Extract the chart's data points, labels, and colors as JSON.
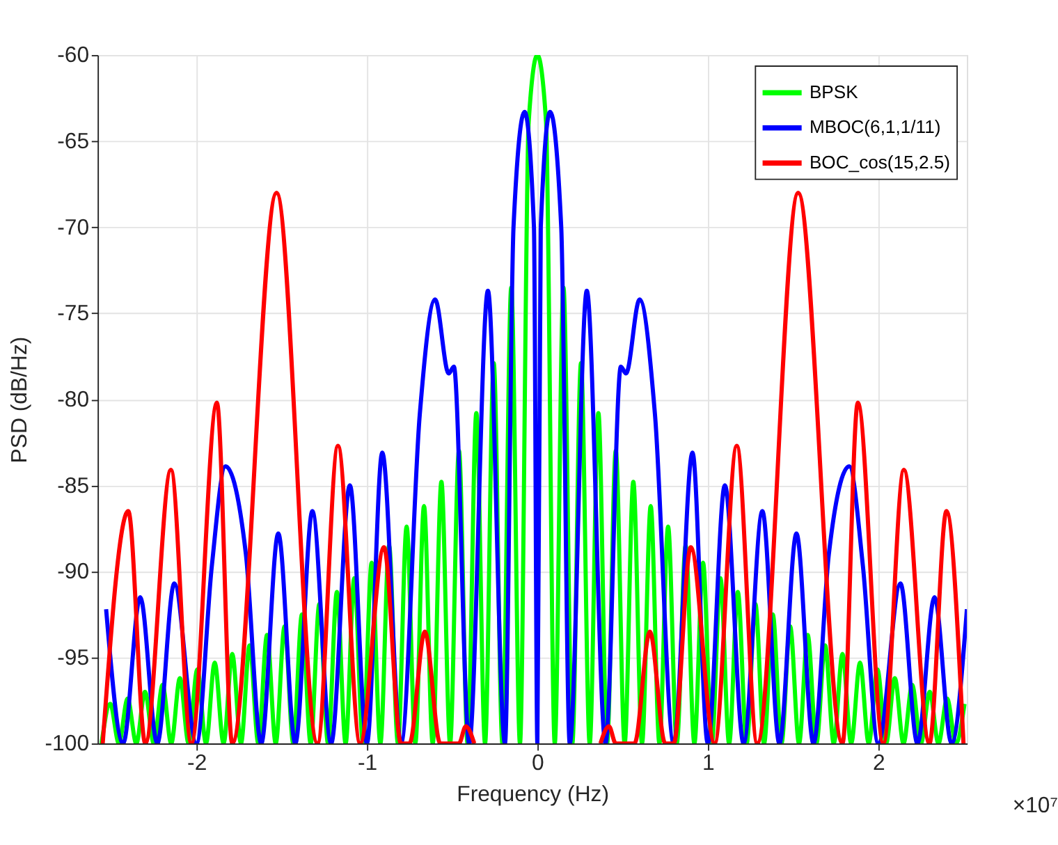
{
  "chart_data": {
    "type": "line",
    "xlabel": "Frequency (Hz)",
    "ylabel": "PSD (dB/Hz)",
    "xlim": [
      -2.58,
      2.52
    ],
    "xticks": [
      -2,
      -1,
      0,
      1,
      2
    ],
    "ylim": [
      -100,
      -60
    ],
    "yticks": [
      -100,
      -95,
      -90,
      -85,
      -80,
      -75,
      -70,
      -65,
      -60
    ],
    "grid": true,
    "legend": "top right",
    "line_style": "solid",
    "marker": "none",
    "annotations": [
      "×10⁷"
    ],
    "series": [
      {
        "name": "BPSK",
        "color": "#00ff00",
        "x": [
          -2.557,
          -2.506,
          -2.455,
          -2.404,
          -2.353,
          -2.302,
          -2.25,
          -2.199,
          -2.148,
          -2.097,
          -2.046,
          -1.995,
          -1.944,
          -1.893,
          -1.841,
          -1.79,
          -1.739,
          -1.688,
          -1.637,
          -1.586,
          -1.535,
          -1.483,
          -1.432,
          -1.381,
          -1.33,
          -1.279,
          -1.228,
          -1.176,
          -1.125,
          -1.074,
          -1.023,
          -0.972,
          -0.921,
          -0.87,
          -0.818,
          -0.767,
          -0.716,
          -0.665,
          -0.614,
          -0.563,
          -0.512,
          -0.46,
          -0.409,
          -0.358,
          -0.307,
          -0.256,
          -0.205,
          -0.153,
          -0.102,
          -0.051,
          0,
          0.051,
          0.102,
          0.153,
          0.205,
          0.256,
          0.307,
          0.358,
          0.409,
          0.46,
          0.512,
          0.563,
          0.614,
          0.665,
          0.716,
          0.767,
          0.818,
          0.87,
          0.921,
          0.972,
          1.023,
          1.074,
          1.125,
          1.176,
          1.228,
          1.279,
          1.33,
          1.381,
          1.432,
          1.483,
          1.535,
          1.586,
          1.637,
          1.688,
          1.739,
          1.79,
          1.841,
          1.893,
          1.944,
          1.995,
          2.046,
          2.097,
          2.148,
          2.199,
          2.25,
          2.302,
          2.353,
          2.404,
          2.455,
          2.506
        ],
        "values": [
          -100,
          -97.7,
          -100,
          -97.4,
          -100,
          -97.0,
          -100,
          -96.6,
          -100,
          -96.2,
          -100,
          -95.7,
          -100,
          -95.3,
          -100,
          -94.8,
          -100,
          -94.3,
          -100,
          -93.7,
          -100,
          -93.2,
          -100,
          -92.5,
          -100,
          -91.9,
          -100,
          -91.2,
          -100,
          -90.4,
          -100,
          -89.5,
          -100,
          -88.5,
          -100,
          -87.4,
          -100,
          -86.2,
          -100,
          -84.8,
          -100,
          -83.0,
          -100,
          -80.8,
          -100,
          -77.9,
          -100,
          -73.5,
          -100,
          -63.9,
          -60,
          -63.9,
          -100,
          -73.5,
          -100,
          -77.9,
          -100,
          -80.8,
          -100,
          -83.0,
          -100,
          -84.8,
          -100,
          -86.2,
          -100,
          -87.4,
          -100,
          -88.5,
          -100,
          -89.5,
          -100,
          -90.4,
          -100,
          -91.2,
          -100,
          -91.9,
          -100,
          -92.5,
          -100,
          -93.2,
          -100,
          -93.7,
          -100,
          -94.3,
          -100,
          -94.8,
          -100,
          -95.3,
          -100,
          -95.7,
          -100,
          -96.2,
          -100,
          -96.6,
          -100,
          -97.0,
          -100,
          -97.4,
          -100,
          -97.7
        ]
      },
      {
        "name": "MBOC(6,1,1/11)",
        "color": "#0000ff",
        "x": [
          -2.53,
          -2.43,
          -2.33,
          -2.23,
          -2.13,
          -2.0,
          -1.91,
          -1.83,
          -1.71,
          -1.62,
          -1.52,
          -1.42,
          -1.32,
          -1.21,
          -1.1,
          -1.0,
          -0.91,
          -0.8,
          -0.69,
          -0.6,
          -0.52,
          -0.49,
          -0.4,
          -0.29,
          -0.19,
          -0.14,
          -0.075,
          -0.02,
          0,
          0.02,
          0.075,
          0.14,
          0.19,
          0.29,
          0.4,
          0.49,
          0.52,
          0.6,
          0.69,
          0.8,
          0.91,
          1.0,
          1.1,
          1.21,
          1.32,
          1.42,
          1.52,
          1.62,
          1.71,
          1.83,
          1.91,
          2.0,
          2.13,
          2.23,
          2.33,
          2.43,
          2.52
        ],
        "values": [
          -92.2,
          -100,
          -91.5,
          -100,
          -90.7,
          -100,
          -89.7,
          -83.9,
          -89.0,
          -100,
          -87.8,
          -100,
          -86.5,
          -100,
          -85.0,
          -100,
          -83.1,
          -100,
          -80.9,
          -74.2,
          -78.5,
          -78.1,
          -100,
          -73.7,
          -100,
          -70,
          -63.3,
          -70,
          -100,
          -70,
          -63.3,
          -70,
          -100,
          -73.7,
          -100,
          -78.1,
          -78.5,
          -74.2,
          -80.9,
          -100,
          -83.1,
          -100,
          -85.0,
          -100,
          -86.5,
          -100,
          -87.8,
          -100,
          -89.0,
          -83.9,
          -89.7,
          -100,
          -90.7,
          -100,
          -91.5,
          -100,
          -92.2
        ]
      },
      {
        "name": "BOC_cos(15,2.5)",
        "color": "#ff0000",
        "x": [
          -2.55,
          -2.4,
          -2.3,
          -2.15,
          -2.03,
          -1.88,
          -1.79,
          -1.53,
          -1.29,
          -1.17,
          -1.04,
          -0.9,
          -0.8,
          -0.75,
          -0.66,
          -0.57,
          -0.46,
          -0.42,
          -0.37,
          0,
          0.37,
          0.42,
          0.46,
          0.57,
          0.66,
          0.75,
          0.8,
          0.9,
          1.04,
          1.17,
          1.29,
          1.53,
          1.79,
          1.88,
          2.03,
          2.15,
          2.3,
          2.4,
          2.5
        ],
        "values": [
          -100,
          -86.5,
          -100,
          -84.1,
          -100,
          -80.2,
          -100,
          -68.0,
          -100,
          -82.7,
          -100,
          -88.6,
          -100,
          -100,
          -93.5,
          -100,
          -100,
          -99.0,
          -100,
          null,
          -100,
          -99.0,
          -100,
          -100,
          -93.5,
          -100,
          -100,
          -88.6,
          -100,
          -82.7,
          -100,
          -68.0,
          -100,
          -80.2,
          -100,
          -84.1,
          -100,
          -86.5,
          -100
        ]
      }
    ]
  }
}
